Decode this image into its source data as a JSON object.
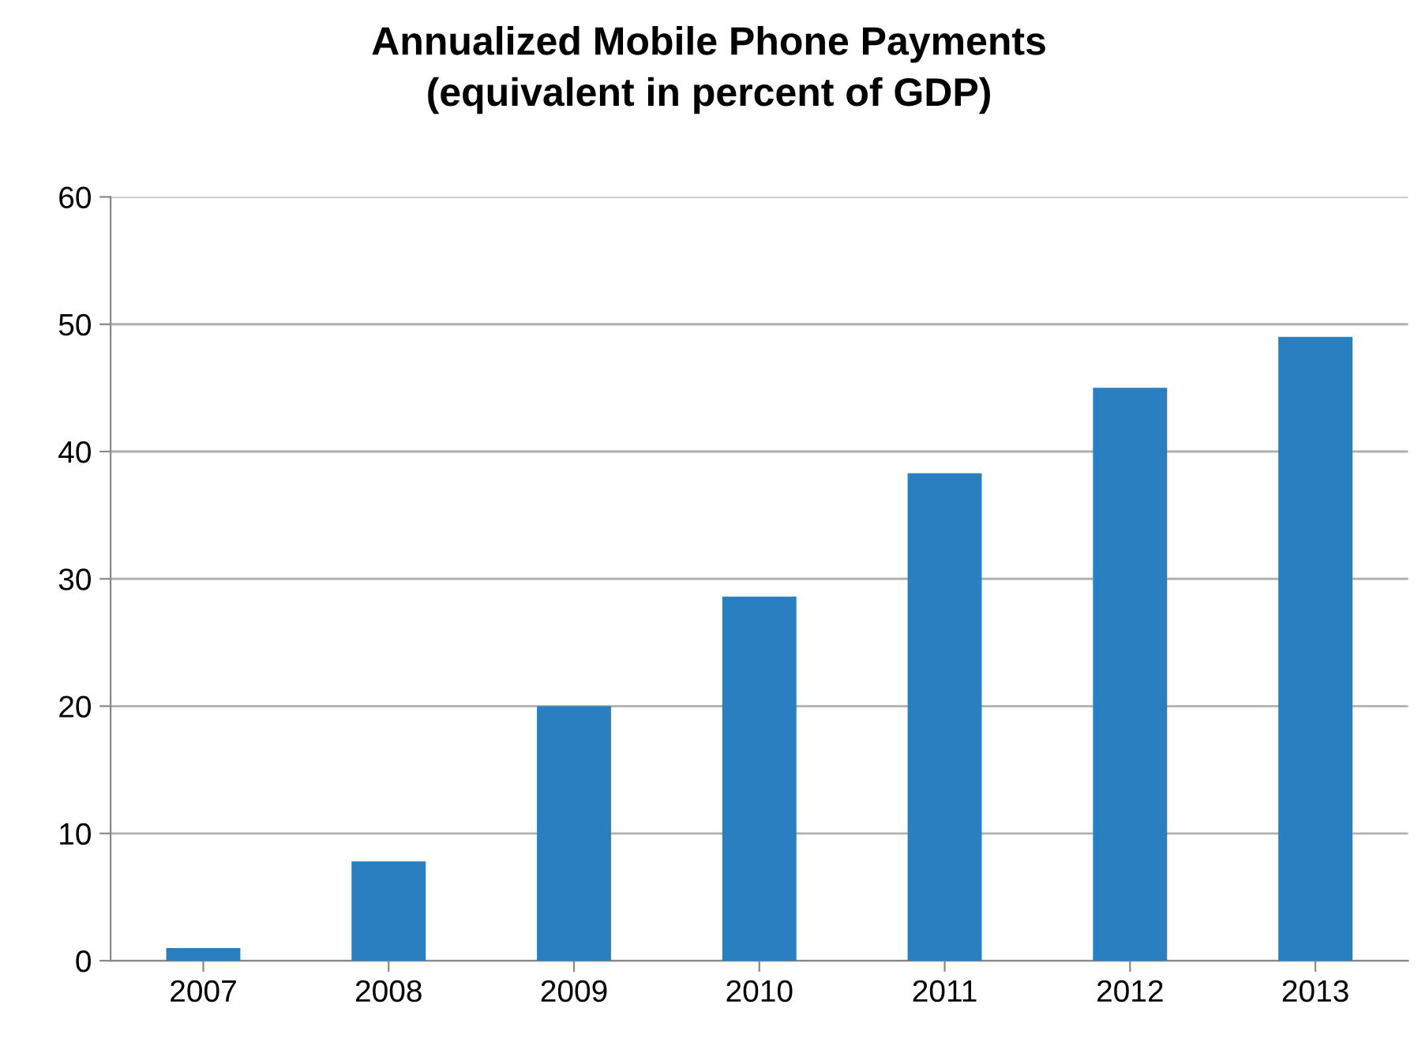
{
  "chart_data": {
    "type": "bar",
    "title": "Annualized Mobile Phone Payments\n(equivalent in percent of GDP)",
    "categories": [
      "2007",
      "2008",
      "2009",
      "2010",
      "2011",
      "2012",
      "2013"
    ],
    "values": [
      1.0,
      7.8,
      20.0,
      28.6,
      38.3,
      45.0,
      49.0
    ],
    "color": "#2a7fc1",
    "ylim": [
      0,
      60
    ],
    "yticks": [
      0,
      10,
      20,
      30,
      40,
      50,
      60
    ],
    "grid": "y",
    "legend": false
  }
}
